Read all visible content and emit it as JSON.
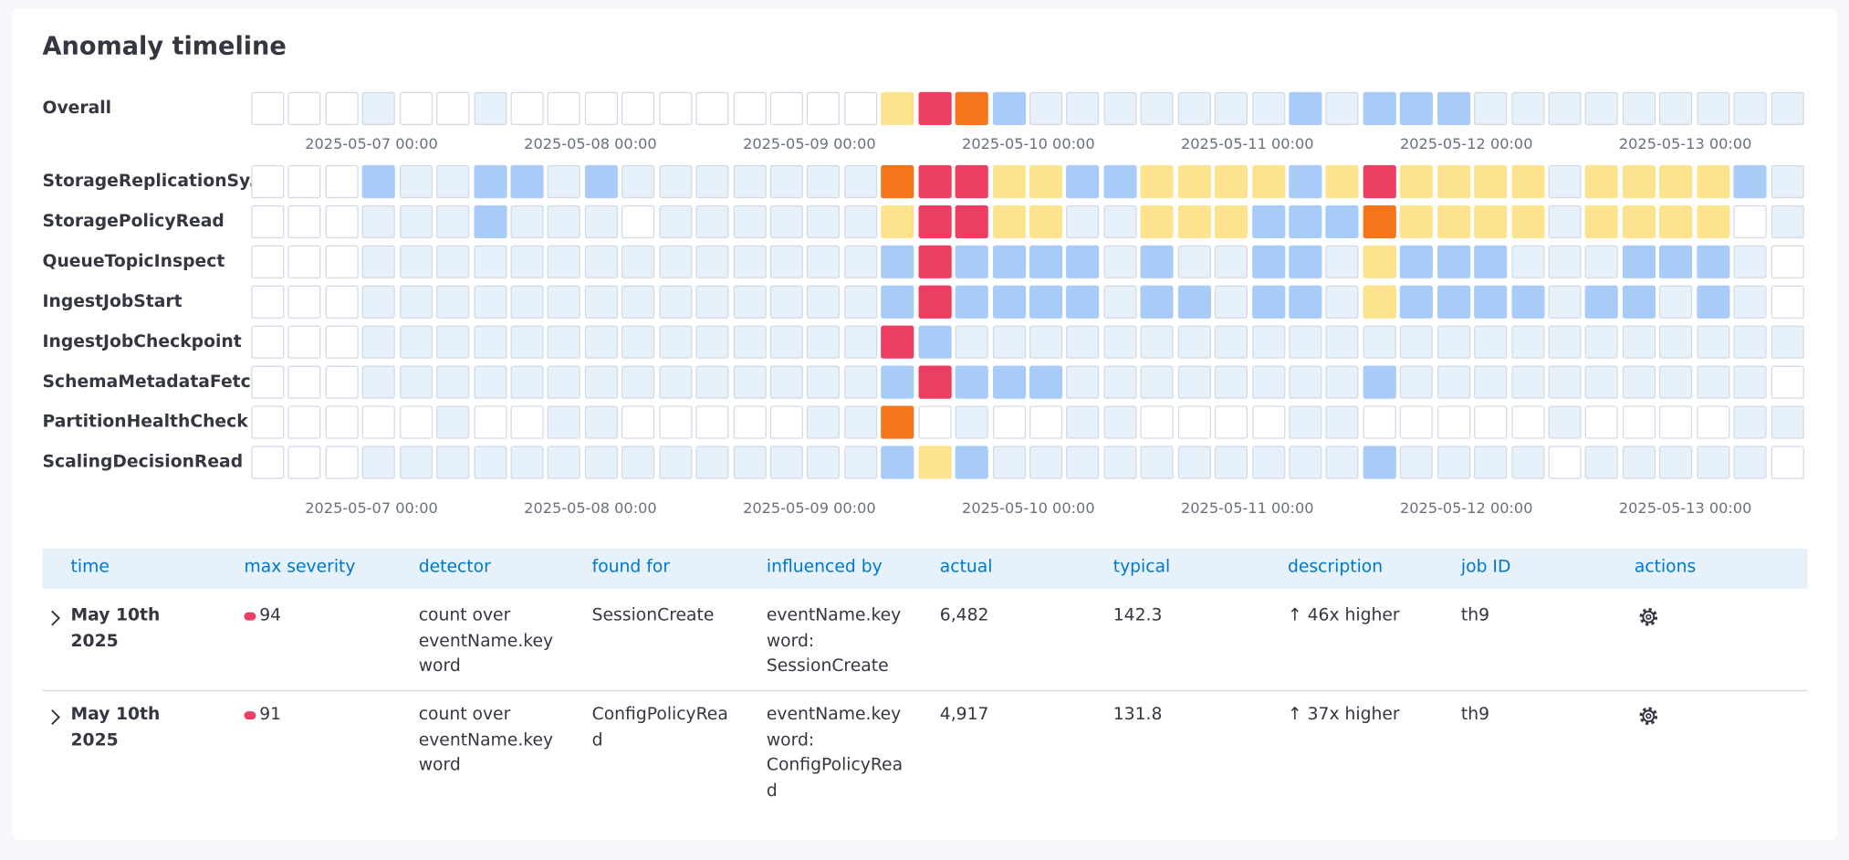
{
  "title": "Anomaly timeline",
  "overall": {
    "label": "Overall",
    "cells": [
      0,
      0,
      0,
      1,
      0,
      0,
      1,
      0,
      0,
      0,
      0,
      0,
      0,
      0,
      0,
      0,
      0,
      3,
      5,
      4,
      2,
      1,
      1,
      1,
      1,
      1,
      1,
      1,
      2,
      1,
      2,
      2,
      2,
      1,
      1,
      1,
      1,
      1,
      1,
      1,
      1,
      1
    ]
  },
  "lanes": [
    {
      "label": "StorageReplicationSy...",
      "cells": [
        0,
        0,
        0,
        2,
        1,
        1,
        2,
        2,
        1,
        2,
        1,
        1,
        1,
        1,
        1,
        1,
        1,
        4,
        5,
        5,
        3,
        3,
        2,
        2,
        3,
        3,
        3,
        3,
        2,
        3,
        5,
        3,
        3,
        3,
        3,
        1,
        3,
        3,
        3,
        3,
        2,
        1
      ]
    },
    {
      "label": "StoragePolicyRead",
      "cells": [
        0,
        0,
        0,
        1,
        1,
        1,
        2,
        1,
        1,
        1,
        0,
        1,
        1,
        1,
        1,
        1,
        1,
        3,
        5,
        5,
        3,
        3,
        1,
        1,
        3,
        3,
        3,
        2,
        2,
        2,
        4,
        3,
        3,
        3,
        3,
        1,
        3,
        3,
        3,
        3,
        0,
        1
      ]
    },
    {
      "label": "QueueTopicInspect",
      "cells": [
        0,
        0,
        0,
        1,
        1,
        1,
        1,
        1,
        1,
        1,
        1,
        1,
        1,
        1,
        1,
        1,
        1,
        2,
        5,
        2,
        2,
        2,
        2,
        1,
        2,
        1,
        1,
        2,
        2,
        1,
        3,
        2,
        2,
        2,
        1,
        1,
        1,
        2,
        2,
        2,
        1,
        0
      ]
    },
    {
      "label": "IngestJobStart",
      "cells": [
        0,
        0,
        0,
        1,
        1,
        1,
        1,
        1,
        1,
        1,
        1,
        1,
        1,
        1,
        1,
        1,
        1,
        2,
        5,
        2,
        2,
        2,
        2,
        1,
        2,
        2,
        1,
        2,
        2,
        1,
        3,
        2,
        2,
        2,
        2,
        1,
        2,
        2,
        1,
        2,
        1,
        0
      ]
    },
    {
      "label": "IngestJobCheckpoint",
      "cells": [
        0,
        0,
        0,
        1,
        1,
        1,
        1,
        1,
        1,
        1,
        1,
        1,
        1,
        1,
        1,
        1,
        1,
        5,
        2,
        1,
        1,
        1,
        1,
        1,
        1,
        1,
        1,
        1,
        1,
        1,
        1,
        1,
        1,
        1,
        1,
        1,
        1,
        1,
        1,
        1,
        1,
        1
      ]
    },
    {
      "label": "SchemaMetadataFetch",
      "cells": [
        0,
        0,
        0,
        1,
        1,
        1,
        1,
        1,
        1,
        1,
        1,
        1,
        1,
        1,
        1,
        1,
        1,
        2,
        5,
        2,
        2,
        2,
        1,
        1,
        1,
        1,
        1,
        1,
        1,
        1,
        2,
        1,
        1,
        1,
        1,
        1,
        1,
        1,
        1,
        1,
        1,
        0
      ]
    },
    {
      "label": "PartitionHealthCheck",
      "cells": [
        0,
        0,
        0,
        0,
        0,
        1,
        0,
        0,
        1,
        1,
        0,
        0,
        0,
        0,
        0,
        1,
        1,
        4,
        0,
        1,
        0,
        0,
        1,
        1,
        0,
        0,
        0,
        0,
        1,
        1,
        0,
        0,
        0,
        0,
        0,
        1,
        0,
        0,
        0,
        0,
        1,
        1
      ]
    },
    {
      "label": "ScalingDecisionRead",
      "cells": [
        0,
        0,
        0,
        1,
        1,
        1,
        1,
        1,
        1,
        1,
        1,
        1,
        1,
        1,
        1,
        1,
        1,
        2,
        3,
        2,
        1,
        1,
        1,
        1,
        1,
        1,
        1,
        1,
        1,
        1,
        2,
        1,
        1,
        1,
        1,
        0,
        1,
        1,
        1,
        1,
        1,
        0
      ]
    }
  ],
  "time_axis": [
    "2025-05-07 00:00",
    "2025-05-08 00:00",
    "2025-05-09 00:00",
    "2025-05-10 00:00",
    "2025-05-11 00:00",
    "2025-05-12 00:00",
    "2025-05-13 00:00"
  ],
  "table": {
    "columns": [
      "time",
      "max severity",
      "detector",
      "found for",
      "influenced by",
      "actual",
      "typical",
      "description",
      "job ID",
      "actions"
    ],
    "rows": [
      {
        "time": "May 10th 2025",
        "max_severity": 94,
        "detector": "count over eventName.keyword",
        "found_for": "SessionCreate",
        "influenced_by": "eventName.keyword: SessionCreate",
        "actual": "6,482",
        "typical": "142.3",
        "description": "↑ 46x higher",
        "job_id": "th9"
      },
      {
        "time": "May 10th 2025",
        "max_severity": 91,
        "detector": "count over eventName.keyword",
        "found_for": "ConfigPolicyRead",
        "influenced_by": "eventName.keyword: ConfigPolicyRead",
        "actual": "4,917",
        "typical": "131.8",
        "description": "↑ 37x higher",
        "job_id": "th9"
      }
    ]
  }
}
